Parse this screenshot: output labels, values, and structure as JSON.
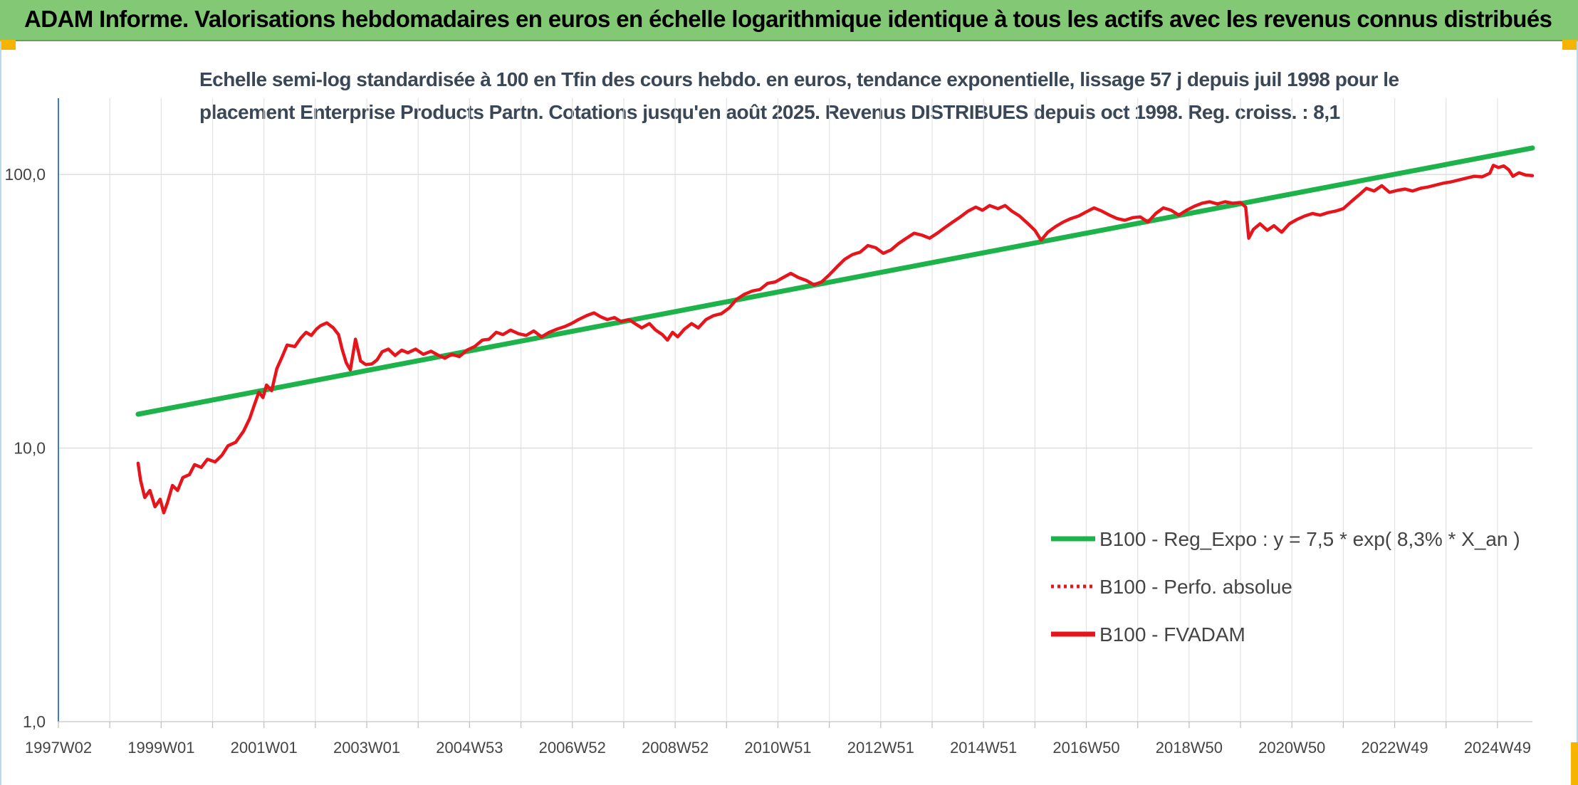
{
  "header": {
    "title": "ADAM Informe. Valorisations hebdomadaires en euros en échelle logarithmique identique à tous les actifs avec les revenus connus distribués"
  },
  "chart_data": {
    "type": "line",
    "title_line1": "Echelle semi-log standardisée à 100 en Tfin des cours hebdo. en euros, tendance exponentielle, lissage 57 j depuis juil 1998 pour le",
    "title_line2": "placement Enterprise Products Partn. Cotations jusqu'en août 2025. Revenus DISTRIBUES depuis oct 1998. Reg. croiss. : 8,1",
    "y_scale": "log",
    "ylim": [
      1,
      190
    ],
    "y_ticks": [
      {
        "value": 1,
        "label": "1,0"
      },
      {
        "value": 10,
        "label": "10,0"
      },
      {
        "value": 100,
        "label": "100,0"
      }
    ],
    "xlim": [
      1997.0,
      2025.68
    ],
    "x_ticks": [
      {
        "value": 1997.0,
        "label": "1997W02"
      },
      {
        "value": 1999.0,
        "label": "1999W01"
      },
      {
        "value": 2001.0,
        "label": "2001W01"
      },
      {
        "value": 2003.0,
        "label": "2003W01"
      },
      {
        "value": 2005.0,
        "label": "2004W53"
      },
      {
        "value": 2007.0,
        "label": "2006W52"
      },
      {
        "value": 2009.0,
        "label": "2008W52"
      },
      {
        "value": 2011.0,
        "label": "2010W51"
      },
      {
        "value": 2013.0,
        "label": "2012W51"
      },
      {
        "value": 2015.0,
        "label": "2014W51"
      },
      {
        "value": 2017.0,
        "label": "2016W50"
      },
      {
        "value": 2019.0,
        "label": "2018W50"
      },
      {
        "value": 2021.0,
        "label": "2020W50"
      },
      {
        "value": 2023.0,
        "label": "2022W49"
      },
      {
        "value": 2025.0,
        "label": "2024W49"
      }
    ],
    "grid": true,
    "legend_position": "bottom-right",
    "series": [
      {
        "name": "B100 - Reg_Expo : y = 7,5 * exp( 8,3% *  X_an )",
        "color": "#1db34a",
        "style": "solid",
        "points": [
          [
            1998.55,
            13.3
          ],
          [
            2025.68,
            125.0
          ]
        ]
      },
      {
        "name": "B100 - Perfo. absolue",
        "color": "#e8141b",
        "style": "dotted",
        "points": []
      },
      {
        "name": "B100 - FVADAM",
        "color": "#e8141b",
        "style": "solid",
        "points": [
          [
            1998.55,
            8.8
          ],
          [
            1998.6,
            7.6
          ],
          [
            1998.68,
            6.6
          ],
          [
            1998.78,
            7.0
          ],
          [
            1998.88,
            6.1
          ],
          [
            1998.98,
            6.5
          ],
          [
            1999.05,
            5.8
          ],
          [
            1999.12,
            6.3
          ],
          [
            1999.22,
            7.3
          ],
          [
            1999.32,
            7.0
          ],
          [
            1999.42,
            7.8
          ],
          [
            1999.55,
            8.0
          ],
          [
            1999.65,
            8.7
          ],
          [
            1999.78,
            8.5
          ],
          [
            1999.9,
            9.1
          ],
          [
            2000.05,
            8.9
          ],
          [
            2000.18,
            9.4
          ],
          [
            2000.3,
            10.2
          ],
          [
            2000.45,
            10.5
          ],
          [
            2000.6,
            11.5
          ],
          [
            2000.72,
            12.8
          ],
          [
            2000.82,
            14.5
          ],
          [
            2000.9,
            16.0
          ],
          [
            2000.98,
            15.3
          ],
          [
            2001.05,
            17.0
          ],
          [
            2001.15,
            16.2
          ],
          [
            2001.25,
            19.5
          ],
          [
            2001.35,
            21.5
          ],
          [
            2001.45,
            23.8
          ],
          [
            2001.6,
            23.5
          ],
          [
            2001.72,
            25.3
          ],
          [
            2001.82,
            26.5
          ],
          [
            2001.92,
            25.8
          ],
          [
            2002.02,
            27.2
          ],
          [
            2002.1,
            28.0
          ],
          [
            2002.22,
            28.7
          ],
          [
            2002.35,
            27.5
          ],
          [
            2002.45,
            26.0
          ],
          [
            2002.52,
            23.0
          ],
          [
            2002.6,
            20.5
          ],
          [
            2002.68,
            19.3
          ],
          [
            2002.78,
            25.0
          ],
          [
            2002.88,
            20.8
          ],
          [
            2002.98,
            20.2
          ],
          [
            2003.1,
            20.3
          ],
          [
            2003.2,
            21.0
          ],
          [
            2003.3,
            22.5
          ],
          [
            2003.42,
            23.0
          ],
          [
            2003.55,
            21.8
          ],
          [
            2003.68,
            22.8
          ],
          [
            2003.8,
            22.3
          ],
          [
            2003.95,
            23.0
          ],
          [
            2004.1,
            22.0
          ],
          [
            2004.25,
            22.6
          ],
          [
            2004.4,
            21.8
          ],
          [
            2004.52,
            21.3
          ],
          [
            2004.65,
            22.0
          ],
          [
            2004.8,
            21.6
          ],
          [
            2004.95,
            22.8
          ],
          [
            2005.1,
            23.5
          ],
          [
            2005.25,
            24.8
          ],
          [
            2005.38,
            25.0
          ],
          [
            2005.52,
            26.5
          ],
          [
            2005.65,
            26.0
          ],
          [
            2005.8,
            27.0
          ],
          [
            2005.95,
            26.2
          ],
          [
            2006.1,
            25.8
          ],
          [
            2006.25,
            26.8
          ],
          [
            2006.4,
            25.5
          ],
          [
            2006.55,
            26.5
          ],
          [
            2006.7,
            27.2
          ],
          [
            2006.85,
            27.8
          ],
          [
            2006.98,
            28.5
          ],
          [
            2007.12,
            29.5
          ],
          [
            2007.28,
            30.5
          ],
          [
            2007.42,
            31.2
          ],
          [
            2007.55,
            30.2
          ],
          [
            2007.68,
            29.5
          ],
          [
            2007.82,
            30.0
          ],
          [
            2007.95,
            29.0
          ],
          [
            2008.1,
            29.5
          ],
          [
            2008.22,
            28.5
          ],
          [
            2008.35,
            27.5
          ],
          [
            2008.5,
            28.5
          ],
          [
            2008.62,
            27.0
          ],
          [
            2008.75,
            26.0
          ],
          [
            2008.85,
            24.8
          ],
          [
            2008.95,
            26.5
          ],
          [
            2009.05,
            25.5
          ],
          [
            2009.18,
            27.2
          ],
          [
            2009.32,
            28.5
          ],
          [
            2009.45,
            27.5
          ],
          [
            2009.6,
            29.5
          ],
          [
            2009.75,
            30.5
          ],
          [
            2009.9,
            31.0
          ],
          [
            2010.05,
            32.5
          ],
          [
            2010.2,
            35.0
          ],
          [
            2010.35,
            36.5
          ],
          [
            2010.5,
            37.5
          ],
          [
            2010.65,
            38.0
          ],
          [
            2010.8,
            40.0
          ],
          [
            2010.95,
            40.5
          ],
          [
            2011.1,
            42.0
          ],
          [
            2011.25,
            43.5
          ],
          [
            2011.4,
            42.0
          ],
          [
            2011.55,
            41.0
          ],
          [
            2011.7,
            39.5
          ],
          [
            2011.85,
            40.5
          ],
          [
            2012.0,
            43.0
          ],
          [
            2012.15,
            46.0
          ],
          [
            2012.3,
            49.0
          ],
          [
            2012.45,
            51.0
          ],
          [
            2012.6,
            52.0
          ],
          [
            2012.75,
            55.0
          ],
          [
            2012.9,
            54.0
          ],
          [
            2013.05,
            51.5
          ],
          [
            2013.2,
            53.0
          ],
          [
            2013.35,
            56.0
          ],
          [
            2013.5,
            58.5
          ],
          [
            2013.65,
            61.0
          ],
          [
            2013.8,
            60.0
          ],
          [
            2013.95,
            58.5
          ],
          [
            2014.1,
            61.0
          ],
          [
            2014.25,
            64.0
          ],
          [
            2014.4,
            67.0
          ],
          [
            2014.55,
            70.0
          ],
          [
            2014.7,
            73.5
          ],
          [
            2014.85,
            76.0
          ],
          [
            2014.98,
            74.0
          ],
          [
            2015.12,
            77.0
          ],
          [
            2015.28,
            75.0
          ],
          [
            2015.42,
            77.0
          ],
          [
            2015.55,
            73.5
          ],
          [
            2015.7,
            70.5
          ],
          [
            2015.85,
            66.5
          ],
          [
            2016.0,
            62.5
          ],
          [
            2016.12,
            57.5
          ],
          [
            2016.25,
            61.5
          ],
          [
            2016.4,
            64.5
          ],
          [
            2016.55,
            67.0
          ],
          [
            2016.7,
            69.0
          ],
          [
            2016.85,
            70.5
          ],
          [
            2017.0,
            73.0
          ],
          [
            2017.15,
            75.5
          ],
          [
            2017.3,
            73.5
          ],
          [
            2017.45,
            71.0
          ],
          [
            2017.6,
            69.0
          ],
          [
            2017.75,
            68.0
          ],
          [
            2017.9,
            69.5
          ],
          [
            2018.05,
            70.0
          ],
          [
            2018.2,
            67.0
          ],
          [
            2018.35,
            72.0
          ],
          [
            2018.5,
            75.5
          ],
          [
            2018.65,
            74.0
          ],
          [
            2018.8,
            71.0
          ],
          [
            2018.95,
            74.0
          ],
          [
            2019.1,
            76.5
          ],
          [
            2019.25,
            78.5
          ],
          [
            2019.4,
            79.5
          ],
          [
            2019.55,
            78.0
          ],
          [
            2019.7,
            79.5
          ],
          [
            2019.85,
            78.5
          ],
          [
            2020.0,
            79.0
          ],
          [
            2020.1,
            76.0
          ],
          [
            2020.16,
            58.5
          ],
          [
            2020.25,
            63.0
          ],
          [
            2020.38,
            66.0
          ],
          [
            2020.52,
            62.5
          ],
          [
            2020.65,
            65.0
          ],
          [
            2020.8,
            61.5
          ],
          [
            2020.95,
            66.0
          ],
          [
            2021.1,
            68.5
          ],
          [
            2021.25,
            70.5
          ],
          [
            2021.4,
            72.0
          ],
          [
            2021.55,
            71.0
          ],
          [
            2021.7,
            72.5
          ],
          [
            2021.85,
            73.5
          ],
          [
            2022.0,
            75.0
          ],
          [
            2022.15,
            79.5
          ],
          [
            2022.3,
            84.0
          ],
          [
            2022.45,
            89.0
          ],
          [
            2022.6,
            87.0
          ],
          [
            2022.75,
            91.0
          ],
          [
            2022.9,
            86.0
          ],
          [
            2023.05,
            87.5
          ],
          [
            2023.2,
            88.5
          ],
          [
            2023.35,
            87.0
          ],
          [
            2023.5,
            89.0
          ],
          [
            2023.65,
            90.0
          ],
          [
            2023.8,
            91.5
          ],
          [
            2023.95,
            93.0
          ],
          [
            2024.1,
            94.0
          ],
          [
            2024.25,
            95.5
          ],
          [
            2024.4,
            97.0
          ],
          [
            2024.55,
            98.5
          ],
          [
            2024.7,
            98.0
          ],
          [
            2024.85,
            101.0
          ],
          [
            2024.92,
            108.0
          ],
          [
            2025.02,
            106.0
          ],
          [
            2025.12,
            107.5
          ],
          [
            2025.22,
            104.0
          ],
          [
            2025.3,
            98.5
          ],
          [
            2025.42,
            101.5
          ],
          [
            2025.55,
            99.5
          ],
          [
            2025.68,
            99.0
          ]
        ]
      }
    ]
  }
}
